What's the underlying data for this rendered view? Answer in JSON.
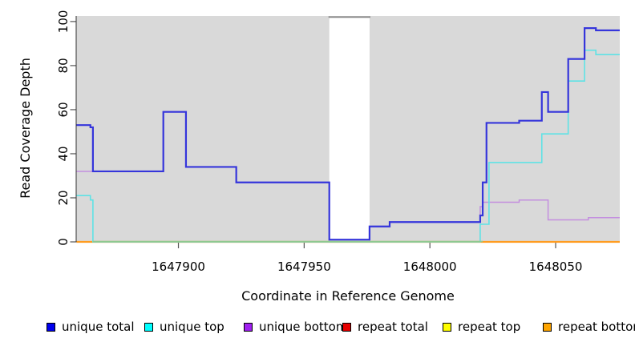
{
  "chart_data": {
    "type": "line",
    "step": "after",
    "title": "",
    "xlabel": "Coordinate in Reference Genome",
    "ylabel": "Read Coverage Depth",
    "xlim": [
      1647859.5,
      1648075.5
    ],
    "ylim": [
      0,
      102.5
    ],
    "xticks": [
      1647900,
      1647950,
      1648000,
      1648050
    ],
    "xtick_labels": [
      "1647900",
      "1647950",
      "1648000",
      "1648050"
    ],
    "yticks": [
      0,
      20,
      40,
      60,
      80,
      100
    ],
    "ytick_labels": [
      "0",
      "20",
      "40",
      "60",
      "80",
      "100"
    ],
    "plot_background": "#D9D9D9",
    "grid": false,
    "legend_position": "bottom",
    "gap_region": {
      "x_start": 1647960,
      "x_end": 1647976,
      "fill": "#FFFFFF",
      "top_border_color": "#8A8A8A"
    },
    "baseline_artifact": {
      "color": "#8FC98F",
      "x_start": 1647866,
      "x_end": 1648021,
      "value": 0
    },
    "series": [
      {
        "name": "repeat total",
        "line_color": "#E60000",
        "line_width": 1.5,
        "points": [
          [
            1647859.5,
            0
          ]
        ]
      },
      {
        "name": "repeat top",
        "line_color": "#FFFF00",
        "line_width": 1.5,
        "points": [
          [
            1647859.5,
            0
          ]
        ]
      },
      {
        "name": "repeat bottom",
        "line_color": "#FF9C20",
        "line_width": 2.2,
        "points": [
          [
            1647859.5,
            0
          ]
        ]
      },
      {
        "name": "unique bottom",
        "line_color": "#C38FDF",
        "line_width": 1.5,
        "points": [
          [
            1647859.5,
            32
          ],
          [
            1647894,
            59
          ],
          [
            1647903,
            34
          ],
          [
            1647923,
            27
          ],
          [
            1647960,
            1
          ],
          [
            1647976,
            7
          ],
          [
            1647984,
            9
          ],
          [
            1648020,
            16
          ],
          [
            1648021,
            18
          ],
          [
            1648035.5,
            19
          ],
          [
            1648047,
            10
          ],
          [
            1648063,
            11
          ]
        ]
      },
      {
        "name": "unique top",
        "line_color": "#5FE2E5",
        "line_width": 1.6,
        "points": [
          [
            1647859.5,
            21
          ],
          [
            1647865,
            19
          ],
          [
            1647866,
            0
          ],
          [
            1648020,
            8
          ],
          [
            1648023.5,
            36
          ],
          [
            1648044.5,
            49
          ],
          [
            1648055,
            73
          ],
          [
            1648061.5,
            87
          ],
          [
            1648066,
            85
          ]
        ]
      },
      {
        "name": "unique total",
        "line_color": "#3535DB",
        "line_width": 2.2,
        "points": [
          [
            1647859.5,
            53
          ],
          [
            1647865,
            52
          ],
          [
            1647866,
            32
          ],
          [
            1647894,
            59
          ],
          [
            1647903,
            34
          ],
          [
            1647923,
            27
          ],
          [
            1647960,
            1
          ],
          [
            1647976,
            7
          ],
          [
            1647984,
            9
          ],
          [
            1648020,
            12
          ],
          [
            1648021,
            27
          ],
          [
            1648022.5,
            54
          ],
          [
            1648035.5,
            55
          ],
          [
            1648044.5,
            68
          ],
          [
            1648047,
            59
          ],
          [
            1648055,
            83
          ],
          [
            1648061.5,
            97
          ],
          [
            1648066,
            96
          ]
        ]
      }
    ]
  },
  "legend": {
    "items": [
      {
        "label": "unique total",
        "color": "#0000EE"
      },
      {
        "label": "unique top",
        "color": "#00FFFF"
      },
      {
        "label": "unique bottom",
        "color": "#A020F0"
      },
      {
        "label": "repeat total",
        "color": "#E60000"
      },
      {
        "label": "repeat top",
        "color": "#FFFF00"
      },
      {
        "label": "repeat bottom",
        "color": "#FFA500"
      }
    ]
  }
}
